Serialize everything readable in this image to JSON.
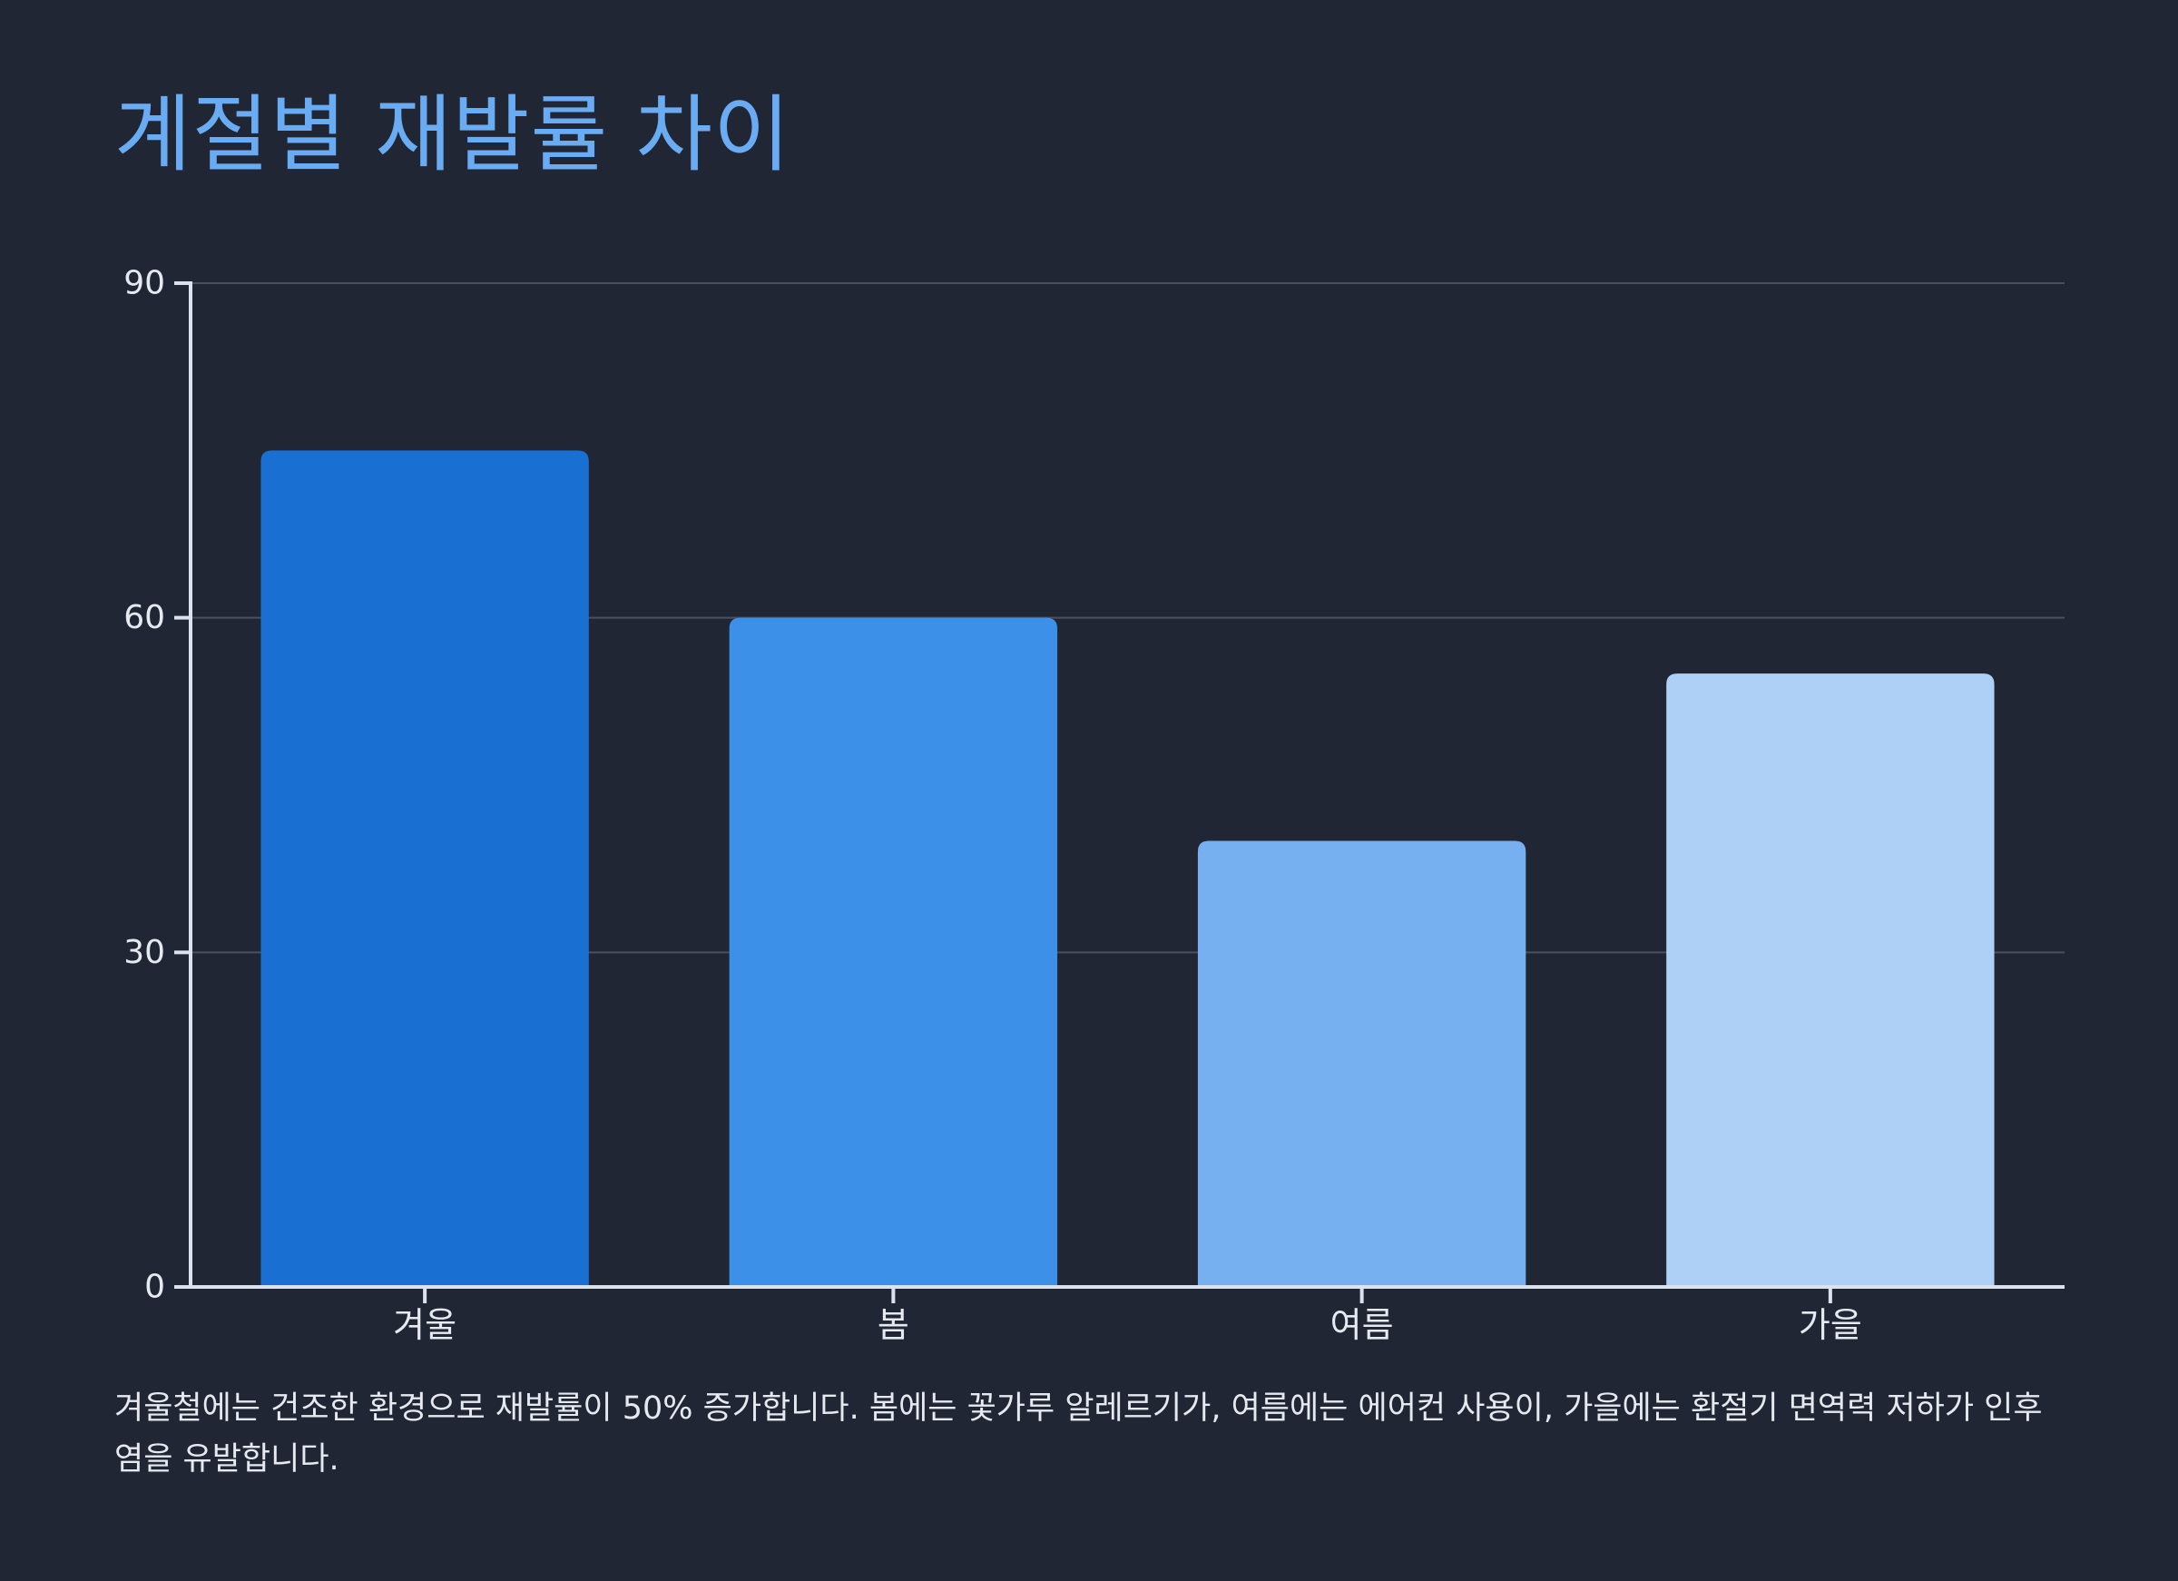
{
  "colors": {
    "background": "#212634",
    "title": "#6aacf3",
    "axis": "#dde3ee",
    "grid": "#4a5060",
    "tick_label": "#e6e9f0",
    "bars": [
      "#1a70d2",
      "#3d90e8",
      "#76b0f0",
      "#aed0f6"
    ]
  },
  "chart_data": {
    "type": "bar",
    "title": "계절별 재발률 차이",
    "xlabel": "",
    "ylabel": "",
    "categories": [
      "겨울",
      "봄",
      "여름",
      "가을"
    ],
    "values": [
      75,
      60,
      40,
      55
    ],
    "ylim": [
      0,
      90
    ],
    "yticks": [
      0,
      30,
      60,
      90
    ],
    "ytick_labels": [
      "0",
      "30",
      "60",
      "90"
    ],
    "grid": true,
    "legend": "none"
  },
  "caption": "겨울철에는 건조한 환경으로 재발률이 50% 증가합니다. 봄에는 꽃가루 알레르기가, 여름에는 에어컨 사용이, 가을에는 환절기 면역력 저하가 인후염을 유발합니다."
}
